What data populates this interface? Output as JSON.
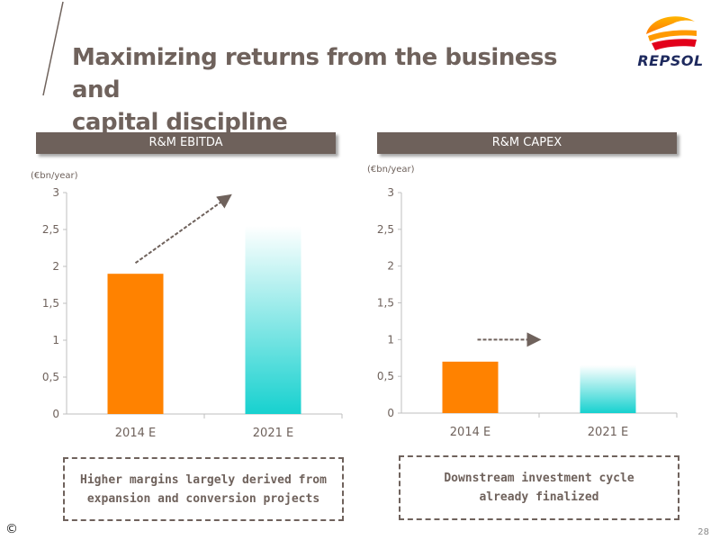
{
  "slide": {
    "title_line1": "Maximizing returns from the business and",
    "title_line2": "capital discipline",
    "logo_text": "REPSOL",
    "copyright": "©",
    "page_number": "28"
  },
  "colors": {
    "bar_2014": "#ff8200",
    "bar_2021_top": "#ffffff",
    "bar_2021_bottom": "#17d1cf",
    "header_bg": "#6e615b",
    "text": "#6f625c"
  },
  "chart_data": [
    {
      "type": "bar",
      "title": "R&M EBITDA",
      "unit": "(€bn/year)",
      "categories": [
        "2014 E",
        "2021 E"
      ],
      "values": [
        1.9,
        2.55
      ],
      "ylim": [
        0,
        3
      ],
      "yticks": [
        "0",
        "0,5",
        "1",
        "1,5",
        "2",
        "2,5",
        "3"
      ],
      "arrow": "up-right",
      "callout": [
        "Higher margins largely derived from",
        "expansion and conversion projects"
      ]
    },
    {
      "type": "bar",
      "title": "R&M CAPEX",
      "unit": "(€bn/year)",
      "categories": [
        "2014 E",
        "2021 E"
      ],
      "values": [
        0.7,
        0.65
      ],
      "ylim": [
        0,
        3
      ],
      "yticks": [
        "0",
        "0,5",
        "1",
        "1,5",
        "2",
        "2,5",
        "3"
      ],
      "arrow": "right",
      "callout": [
        "Downstream investment cycle",
        "already finalized"
      ]
    }
  ]
}
